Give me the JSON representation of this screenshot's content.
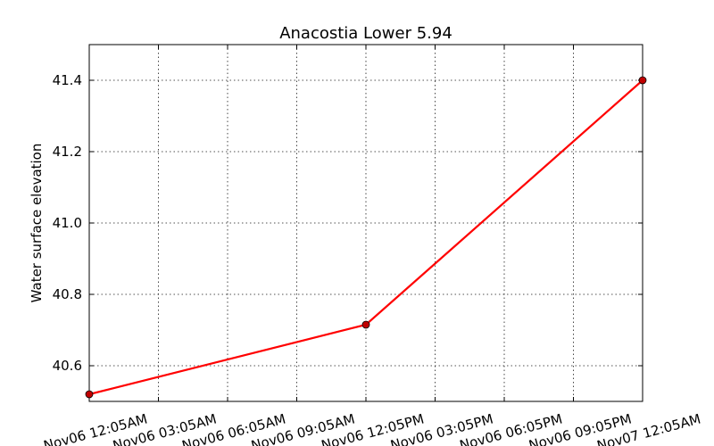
{
  "chart_data": {
    "type": "line",
    "title": "Anacostia Lower 5.94",
    "xlabel": "",
    "ylabel": "Water surface elevation",
    "x_ticks": [
      "Nov06 12:05AM",
      "Nov06 03:05AM",
      "Nov06 06:05AM",
      "Nov06 09:05AM",
      "Nov06 12:05PM",
      "Nov06 03:05PM",
      "Nov06 06:05PM",
      "Nov06 09:05PM",
      "Nov07 12:05AM"
    ],
    "y_ticks": [
      "40.6",
      "40.8",
      "41.0",
      "41.2",
      "41.4"
    ],
    "ylim": [
      40.5,
      41.5
    ],
    "grid": true,
    "series": [
      {
        "color": "#ff0000",
        "points": [
          {
            "x": "Nov06 12:05AM",
            "y": 40.52
          },
          {
            "x": "Nov06 12:05PM",
            "y": 40.715
          },
          {
            "x": "Nov07 12:05AM",
            "y": 41.4
          }
        ]
      }
    ]
  }
}
